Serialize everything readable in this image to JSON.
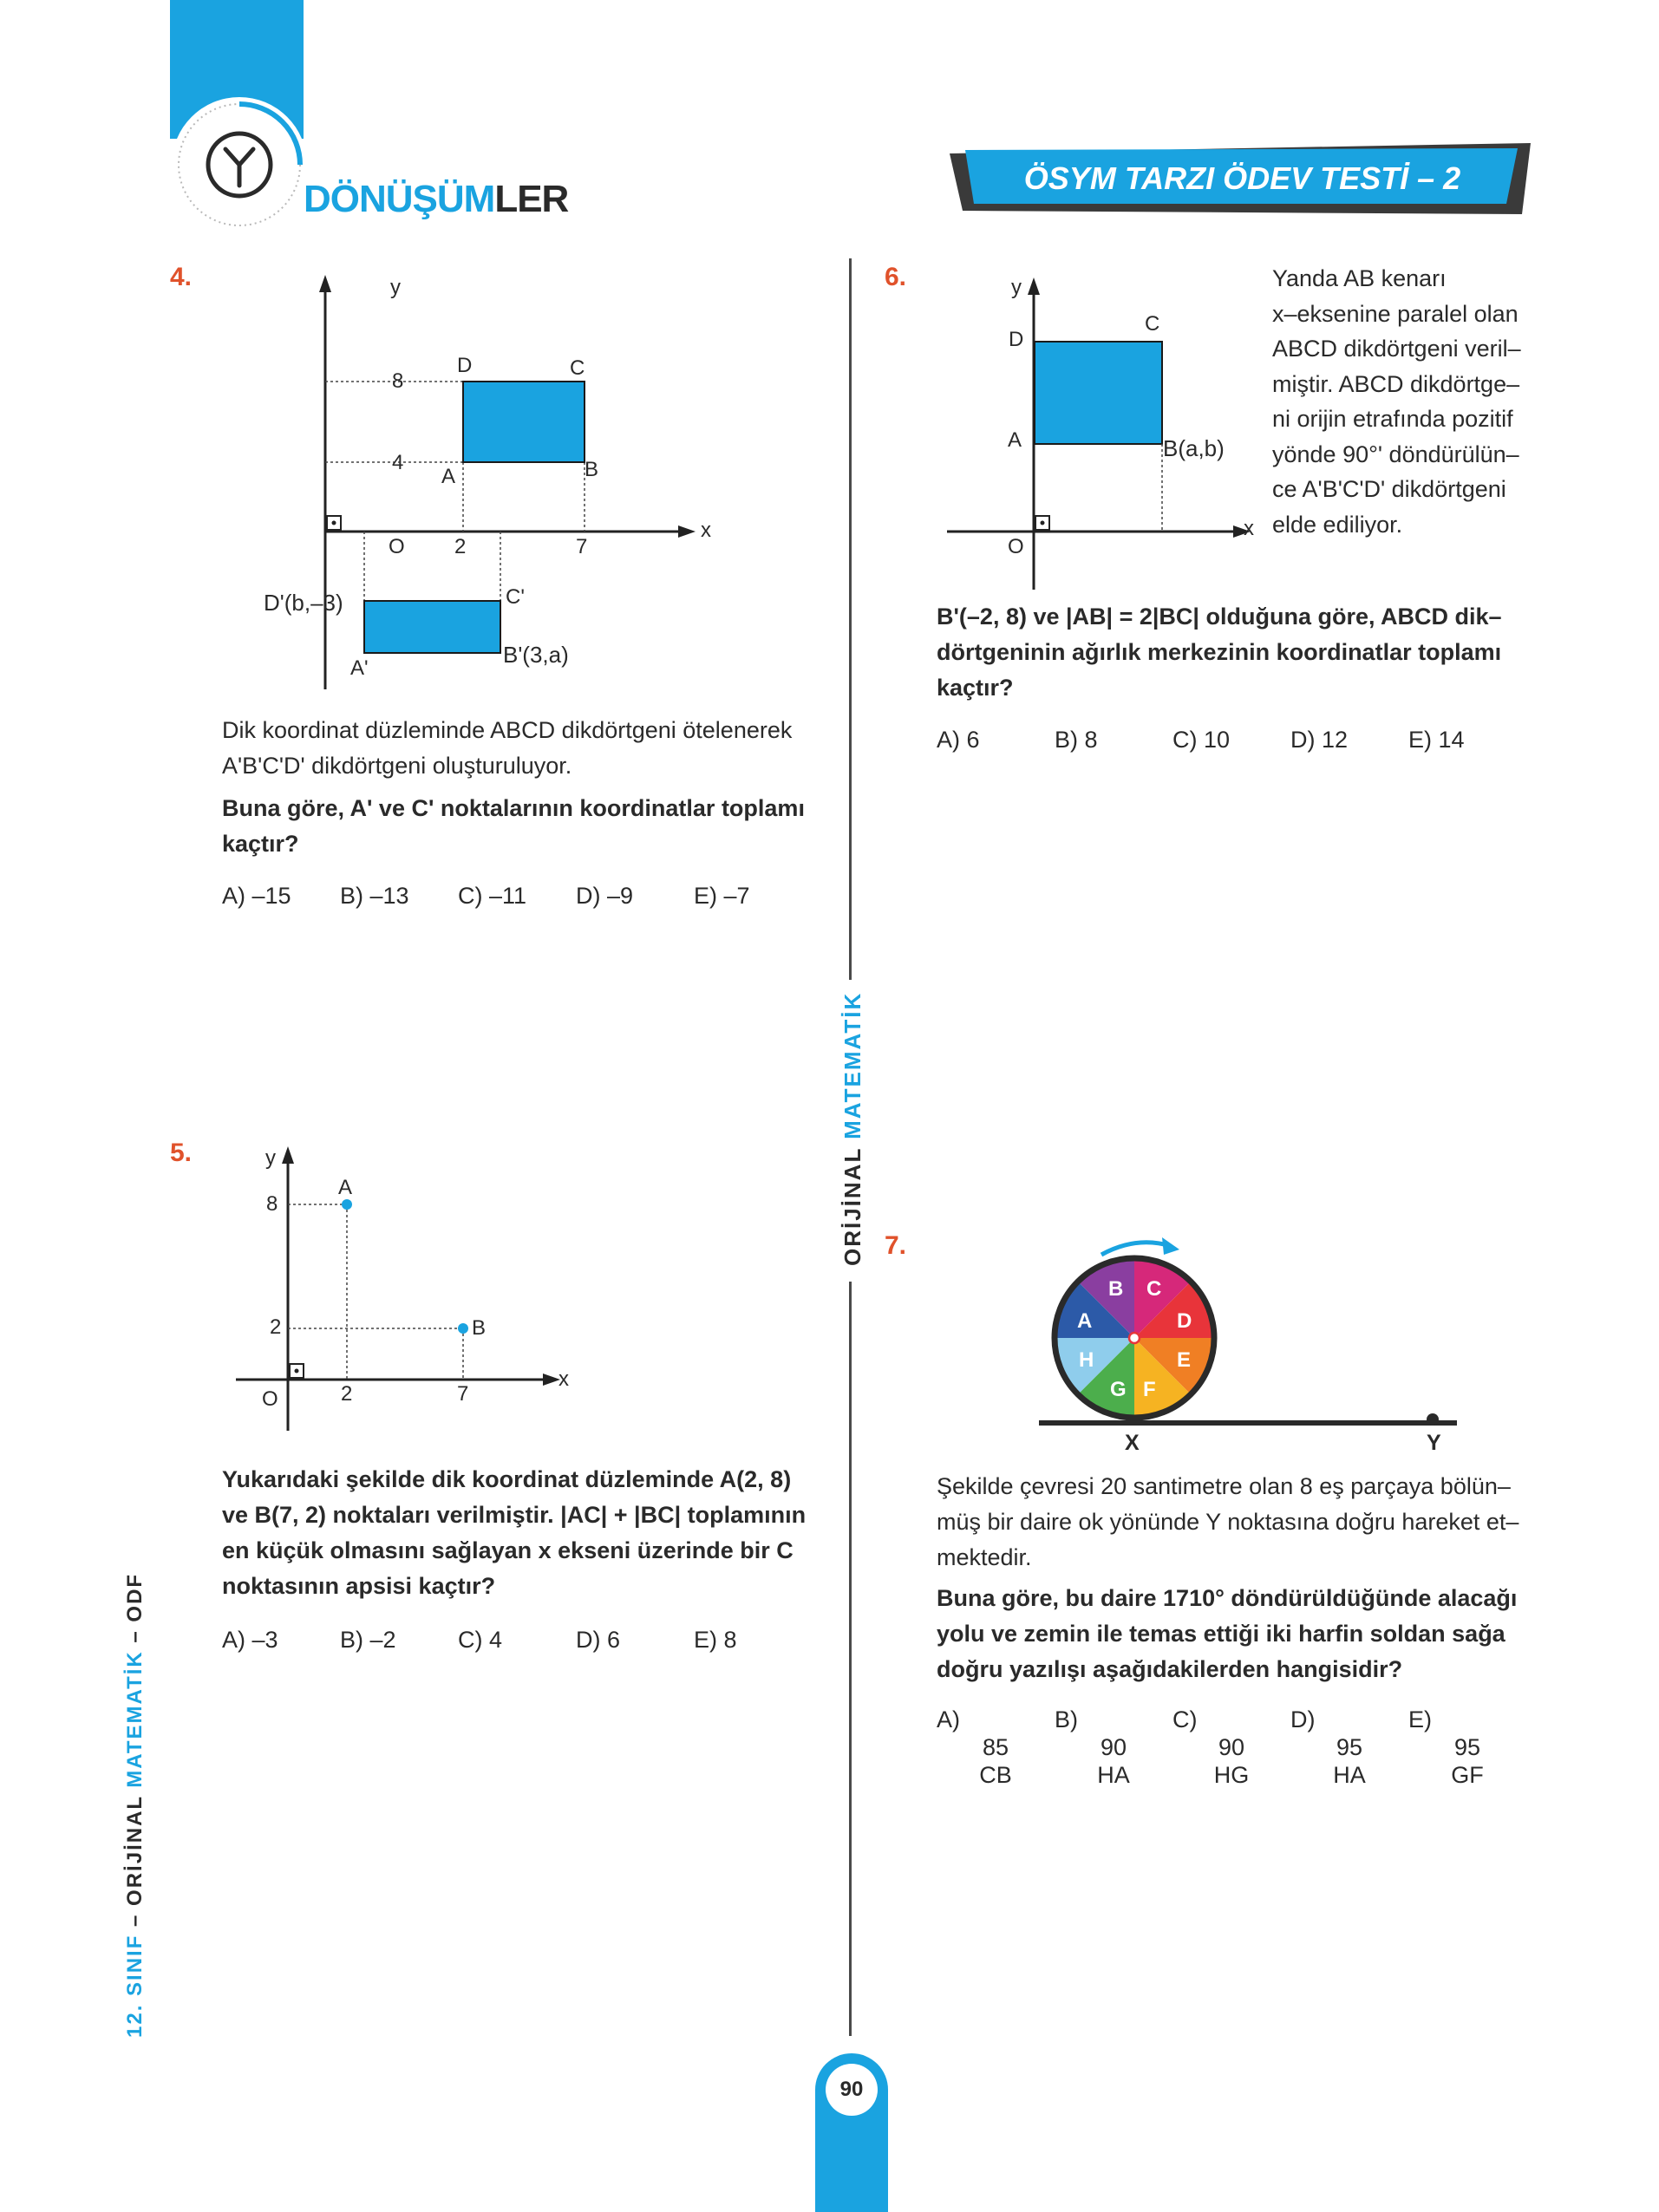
{
  "header": {
    "section_title_part1": "DÖNÜŞÜM",
    "section_title_part2": "LER",
    "test_title": "ÖSYM TARZI ÖDEV TESTİ – 2",
    "accent_color": "#1aa3e0"
  },
  "sidebar": {
    "center_label_part1": "ORİJİNAL ",
    "center_label_part2": "MATEMATİK",
    "left_label_part1": "12. SINIF",
    "left_label_part2": " – ORİJİNAL ",
    "left_label_part3": "MATEMATİK",
    "left_label_part4": " – ODF"
  },
  "page_number": "90",
  "questions": {
    "q4": {
      "number": "4.",
      "figure": {
        "y_axis": "y",
        "x_axis": "x",
        "origin": "O",
        "tick_y1": "8",
        "tick_y2": "4",
        "tick_x1": "2",
        "tick_x2": "7",
        "label_D": "D",
        "label_C": "C",
        "label_A": "A",
        "label_B": "B",
        "label_Dp": "D'(b,–3)",
        "label_Cp": "C'",
        "label_Ap": "A'",
        "label_Bp": "B'(3,a)"
      },
      "text_line1": "Dik koordinat düzleminde ABCD dikdörtgeni ötelenerek",
      "text_line2": "A'B'C'D' dikdörtgeni oluşturuluyor.",
      "question_line1": "Buna göre, A' ve C' noktalarının koordinatlar toplamı",
      "question_line2": "kaçtır?",
      "choices": [
        "A) –15",
        "B) –13",
        "C) –11",
        "D) –9",
        "E) –7"
      ]
    },
    "q5": {
      "number": "5.",
      "figure": {
        "y_axis": "y",
        "x_axis": "x",
        "origin": "O",
        "tick_y1": "8",
        "tick_y2": "2",
        "tick_x1": "2",
        "tick_x2": "7",
        "label_A": "A",
        "label_B": "B"
      },
      "question_line1": "Yukarıdaki şekilde dik koordinat düzleminde A(2, 8)",
      "question_line2": "ve B(7, 2) noktaları verilmiştir. |AC| + |BC| toplamının",
      "question_line3": "en küçük olmasını sağlayan x ekseni üzerinde bir C",
      "question_line4": "noktasının apsisi kaçtır?",
      "choices": [
        "A) –3",
        "B) –2",
        "C) 4",
        "D) 6",
        "E) 8"
      ]
    },
    "q6": {
      "number": "6.",
      "figure": {
        "y_axis": "y",
        "x_axis": "x",
        "origin": "O",
        "label_D": "D",
        "label_C": "C",
        "label_A": "A",
        "label_B": "B(a,b)"
      },
      "side_lines": [
        "Yanda AB kenarı",
        "x–eksenine paralel olan",
        "ABCD dikdörtgeni veril–",
        "miştir. ABCD dikdörtge–",
        "ni orijin etrafında pozitif",
        "yönde 90°' döndürülün–",
        "ce A'B'C'D' dikdörtgeni",
        "elde ediliyor."
      ],
      "question_line1": "B'(–2, 8) ve |AB| = 2|BC| olduğuna göre, ABCD dik–",
      "question_line2": "dörtgeninin ağırlık merkezinin koordinatlar toplamı",
      "question_line3": "kaçtır?",
      "choices": [
        "A) 6",
        "B) 8",
        "C) 10",
        "D) 12",
        "E) 14"
      ]
    },
    "q7": {
      "number": "7.",
      "figure": {
        "segments": [
          "B",
          "C",
          "D",
          "E",
          "F",
          "G",
          "H",
          "A"
        ],
        "segment_colors": [
          "#8a3ea0",
          "#d6287a",
          "#e8343a",
          "#f07f24",
          "#f6b322",
          "#4cae4c",
          "#8fcdec",
          "#2c5aa8"
        ],
        "label_X": "X",
        "label_Y": "Y"
      },
      "text_line1": "Şekilde çevresi 20 santimetre olan 8 eş parçaya bölün–",
      "text_line2": "müş bir daire ok yönünde Y noktasına doğru hareket et–",
      "text_line3": "mektedir.",
      "question_line1": "Buna göre, bu daire 1710° döndürüldüğünde alacağı",
      "question_line2": "yolu ve zemin ile temas ettiği iki harfin soldan sağa",
      "question_line3": "doğru yazılışı aşağıdakilerden hangisidir?",
      "choices": [
        {
          "letter": "A)",
          "top": "85",
          "bottom": "CB"
        },
        {
          "letter": "B)",
          "top": "90",
          "bottom": "HA"
        },
        {
          "letter": "C)",
          "top": "90",
          "bottom": "HG"
        },
        {
          "letter": "D)",
          "top": "95",
          "bottom": "HA"
        },
        {
          "letter": "E)",
          "top": "95",
          "bottom": "GF"
        }
      ]
    }
  }
}
